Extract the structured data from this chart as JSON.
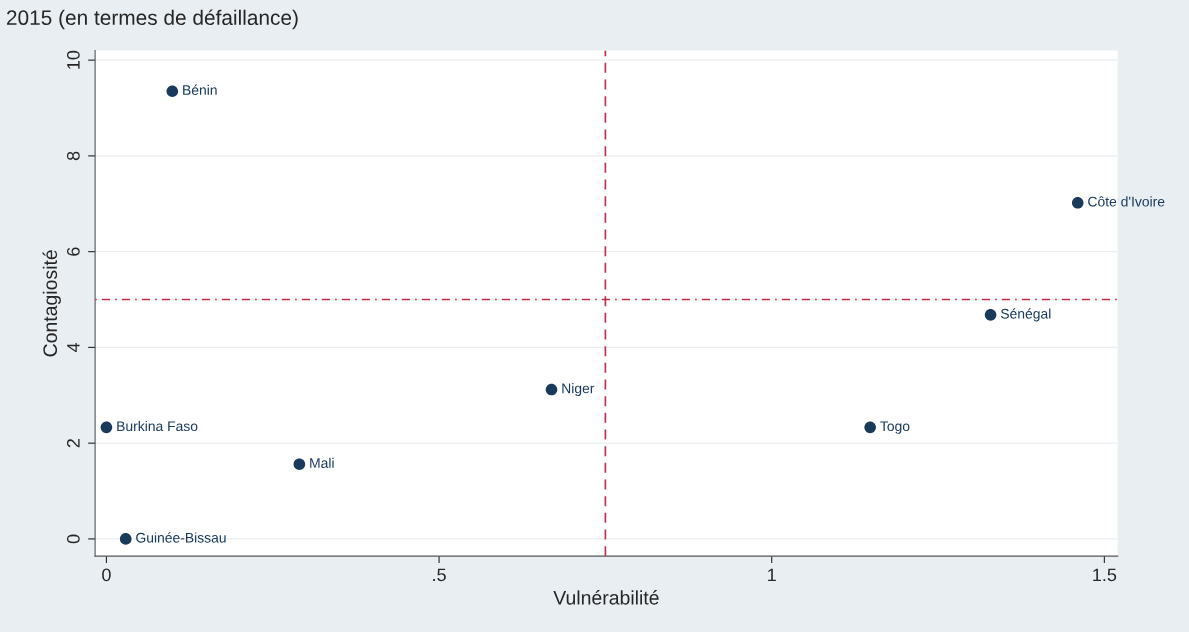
{
  "chart_data": {
    "type": "scatter",
    "title": "2015 (en termes de défaillance)",
    "xlabel": "Vulnérabilité",
    "ylabel": "Contagiosité",
    "x": [
      0.099,
      0,
      0.029,
      0.29,
      0.669,
      1.148,
      1.329,
      1.46
    ],
    "series": [
      {
        "color": "#1a3a5c",
        "values": [
          9.35,
          2.33,
          0,
          1.56,
          3.12,
          2.33,
          4.68,
          7.02
        ]
      }
    ],
    "annotations": [
      {
        "text": "Bénin",
        "x": 0.099,
        "y": 9.35
      },
      {
        "text": "Burkina Faso",
        "x": 0,
        "y": 2.33
      },
      {
        "text": "Guinée-Bissau",
        "x": 0.029,
        "y": 0
      },
      {
        "text": "Mali",
        "x": 0.29,
        "y": 1.56
      },
      {
        "text": "Niger",
        "x": 0.669,
        "y": 3.12
      },
      {
        "text": "Togo",
        "x": 1.148,
        "y": 2.33
      },
      {
        "text": "Sénégal",
        "x": 1.329,
        "y": 4.68
      },
      {
        "text": "Côte d'Ivoire",
        "x": 1.46,
        "y": 7.02
      }
    ],
    "ref_lines": [
      {
        "axis": "x",
        "value": 0.75,
        "color": "#c0304a",
        "line_style": "dashed"
      },
      {
        "axis": "y",
        "value": 5,
        "color": "#c0304a",
        "line_style": "dotted"
      }
    ],
    "xlim": [
      -0.017,
      1.52
    ],
    "ylim": [
      -0.36,
      10.2
    ],
    "xticks": [
      0,
      {
        "value": 0.5,
        "label": ".5"
      },
      1,
      1.5
    ],
    "yticks": [
      0,
      2,
      4,
      6,
      8,
      10
    ],
    "grid": "y",
    "marker": "circle",
    "legend": false
  }
}
